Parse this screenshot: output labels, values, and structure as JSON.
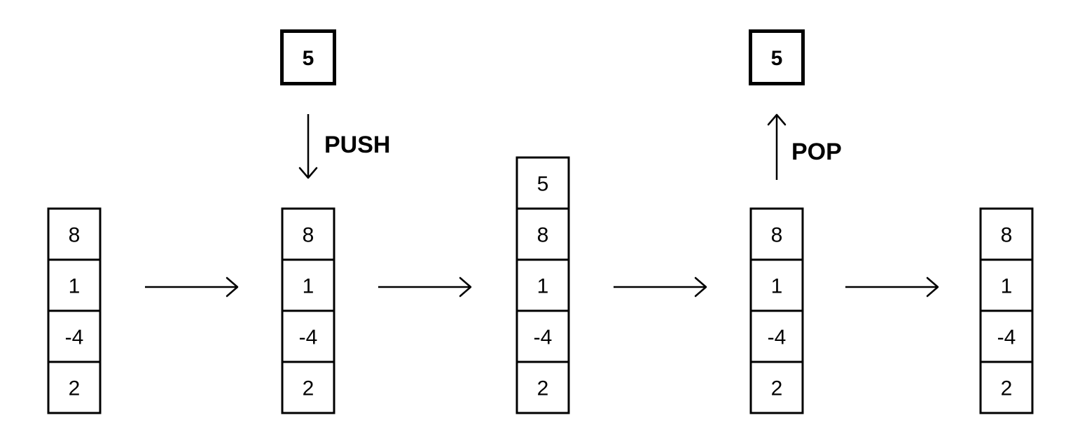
{
  "stacks": [
    {
      "cells": [
        "8",
        "1",
        "-4",
        "2"
      ]
    },
    {
      "cells": [
        "8",
        "1",
        "-4",
        "2"
      ]
    },
    {
      "cells": [
        "5",
        "8",
        "1",
        "-4",
        "2"
      ]
    },
    {
      "cells": [
        "8",
        "1",
        "-4",
        "2"
      ]
    },
    {
      "cells": [
        "8",
        "1",
        "-4",
        "2"
      ]
    }
  ],
  "operations": {
    "push": {
      "label": "PUSH",
      "value": "5"
    },
    "pop": {
      "label": "POP",
      "value": "5"
    }
  },
  "colors": {
    "stroke": "#000000",
    "background": "#ffffff"
  }
}
